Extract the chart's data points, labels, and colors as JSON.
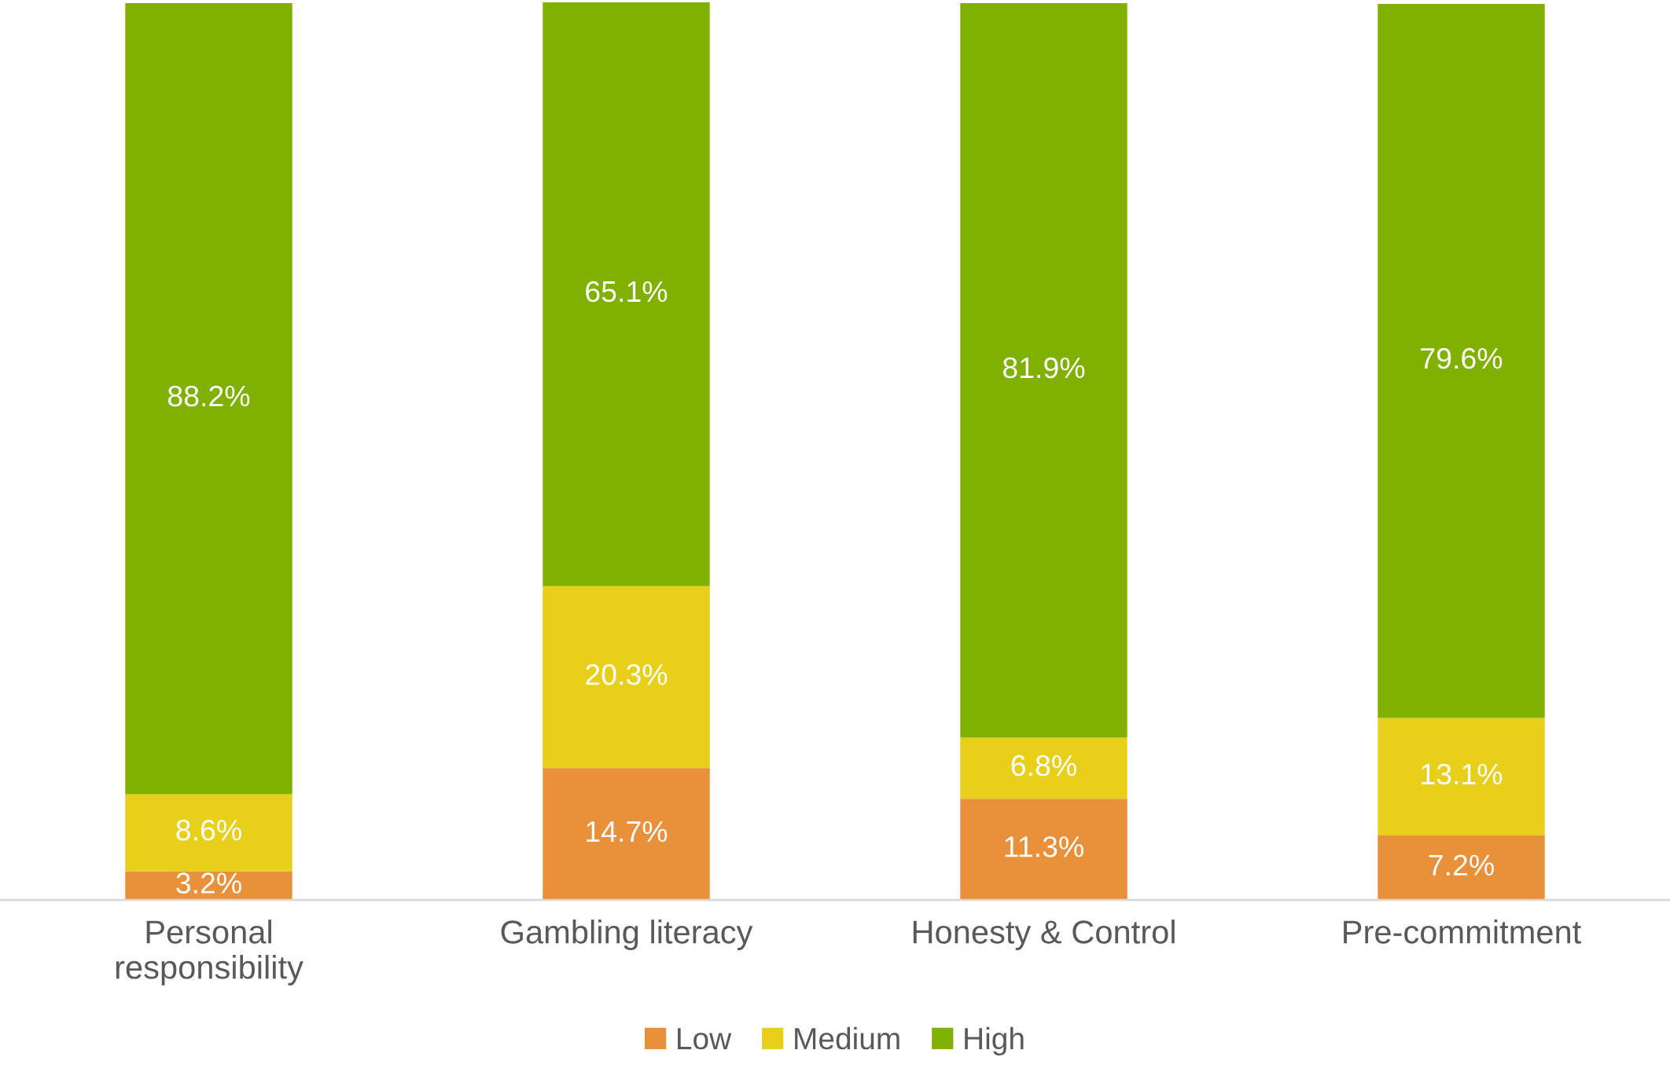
{
  "chart_data": {
    "type": "bar",
    "stacked": true,
    "legend": "bottom",
    "grid": false,
    "categories": [
      "Personal\nresponsibility",
      "Gambling literacy",
      "Honesty & Control",
      "Pre-commitment"
    ],
    "series": [
      {
        "name": "Low",
        "color": "#e8903a",
        "values": [
          3.2,
          14.7,
          11.3,
          7.2
        ],
        "value_labels": [
          "3.2%",
          "14.7%",
          "11.3%",
          "7.2%"
        ]
      },
      {
        "name": "Medium",
        "color": "#e8d01a",
        "values": [
          8.6,
          20.3,
          6.8,
          13.1
        ],
        "value_labels": [
          "8.6%",
          "20.3%",
          "6.8%",
          "13.1%"
        ]
      },
      {
        "name": "High",
        "color": "#80b000",
        "values": [
          88.2,
          65.1,
          81.9,
          79.6
        ],
        "value_labels": [
          "88.2%",
          "65.1%",
          "81.9%",
          "79.6%"
        ]
      }
    ]
  }
}
